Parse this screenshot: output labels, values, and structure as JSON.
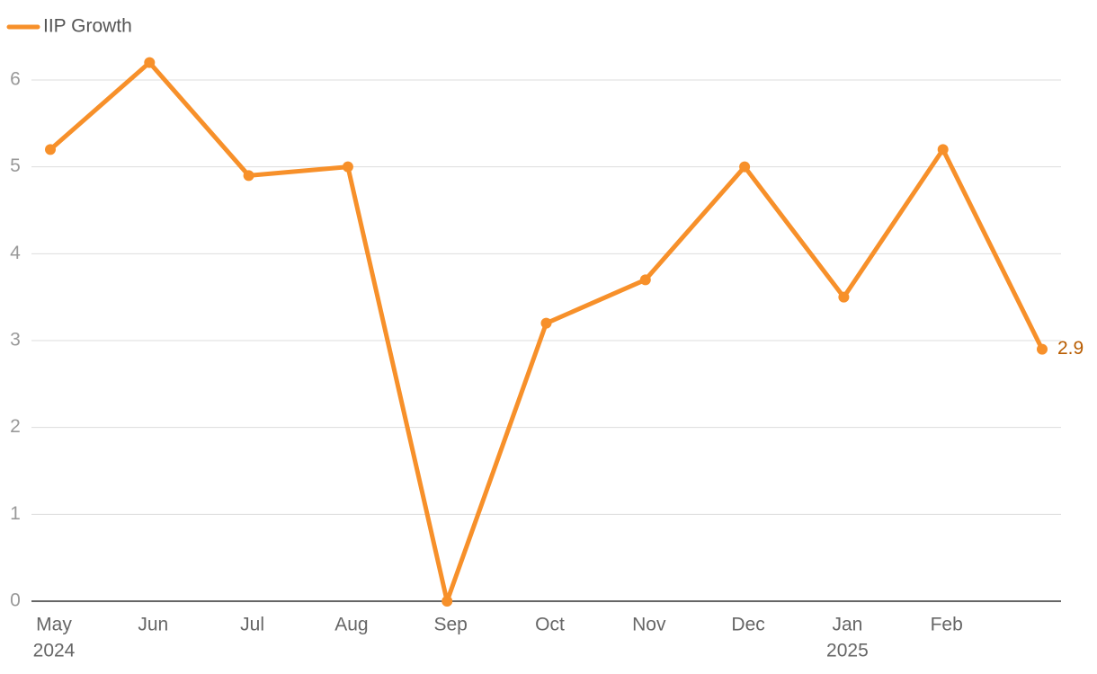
{
  "chart_data": {
    "type": "line",
    "categories": [
      "May",
      "Jun",
      "Jul",
      "Aug",
      "Sep",
      "Oct",
      "Nov",
      "Dec",
      "Jan",
      "Feb",
      null
    ],
    "x_sublabels": [
      "2024",
      null,
      null,
      null,
      null,
      null,
      null,
      null,
      "2025",
      null,
      null
    ],
    "series": [
      {
        "name": "IIP Growth",
        "color": "#f7902a",
        "values": [
          5.2,
          6.2,
          4.9,
          5.0,
          0,
          3.2,
          3.7,
          5.0,
          3.5,
          5.2,
          2.9
        ]
      }
    ],
    "ylim": [
      0,
      6
    ],
    "yticks": [
      0,
      1,
      2,
      3,
      4,
      5,
      6
    ],
    "grid": true,
    "label_last": true,
    "legend": "top-left"
  }
}
